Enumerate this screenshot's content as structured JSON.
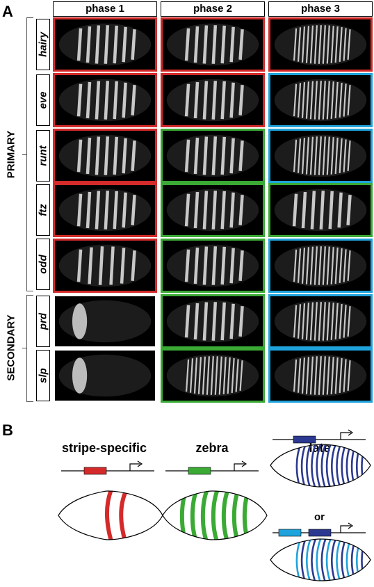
{
  "panel_a": {
    "letter": "A",
    "phases": [
      "phase 1",
      "phase 2",
      "phase 3"
    ],
    "groups": {
      "primary": "PRIMARY",
      "secondary": "SECONDARY"
    },
    "genes": [
      "hairy",
      "eve",
      "runt",
      "ftz",
      "odd",
      "prd",
      "slp"
    ],
    "frame_colors": {
      "red": "#d42a2a",
      "green": "#3aaa35",
      "blue": "#1fa3dc",
      "none": "none"
    },
    "frames": [
      [
        "red",
        "red",
        "red"
      ],
      [
        "red",
        "red",
        "blue"
      ],
      [
        "red",
        "green",
        "blue"
      ],
      [
        "red",
        "green",
        "green"
      ],
      [
        "red",
        "green",
        "blue"
      ],
      [
        "none",
        "green",
        "blue"
      ],
      [
        "none",
        "green",
        "blue"
      ]
    ],
    "stripe_counts": [
      [
        7,
        7,
        14
      ],
      [
        7,
        7,
        14
      ],
      [
        7,
        7,
        14
      ],
      [
        7,
        7,
        7
      ],
      [
        6,
        7,
        14
      ],
      [
        1,
        7,
        14
      ],
      [
        1,
        14,
        14
      ]
    ]
  },
  "panel_b": {
    "letter": "B",
    "types": [
      {
        "title": "stripe-specific",
        "enhancer_color": "#d42a2a",
        "stripe_color": "#d42a2a"
      },
      {
        "title": "zebra",
        "enhancer_color": "#3aaa35",
        "stripe_color": "#3aaa35"
      },
      {
        "title": "late",
        "enhancer_color": "#2b3990",
        "stripe_color": "#2b3990"
      }
    ],
    "or_label": "or",
    "alt_enhancer_colors": [
      "#1fa3dc",
      "#2b3990"
    ],
    "promoter_icon": "arrow-promoter-icon"
  }
}
